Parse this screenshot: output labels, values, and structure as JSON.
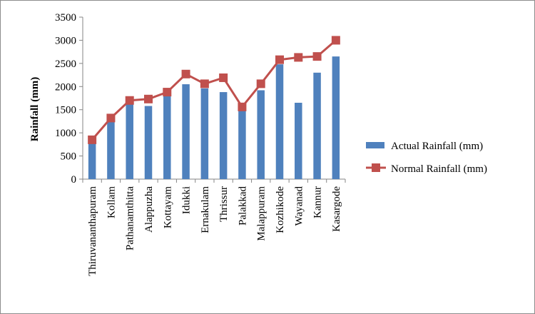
{
  "chart_data": {
    "type": "bar",
    "title": "",
    "ylabel": "Rainfall (mm)",
    "xlabel": "",
    "ylim": [
      0,
      3500
    ],
    "yticks": [
      0,
      500,
      1000,
      1500,
      2000,
      2500,
      3000,
      3500
    ],
    "grid": false,
    "legend_position": "right",
    "categories": [
      "Thiruvananthapuram",
      "Kollam",
      "Pathanamthitta",
      "Alappuzha",
      "Kottayam",
      "Idukki",
      "Ernakulam",
      "Thrissur",
      "Palakkad",
      "Malappuram",
      "Kozhikode",
      "Wayanad",
      "Kannur",
      "Kasargode"
    ],
    "series": [
      {
        "name": "Actual Rainfall (mm)",
        "type": "bar",
        "color": "#4f81bd",
        "values": [
          800,
          1250,
          1620,
          1580,
          1800,
          2050,
          1960,
          1880,
          1480,
          1920,
          2480,
          1650,
          2300,
          2650
        ]
      },
      {
        "name": "Normal Rainfall (mm)",
        "type": "line",
        "color": "#c0504d",
        "values": [
          850,
          1320,
          1700,
          1730,
          1880,
          2270,
          2060,
          2190,
          1560,
          2060,
          2580,
          2630,
          2650,
          3000
        ]
      }
    ]
  }
}
